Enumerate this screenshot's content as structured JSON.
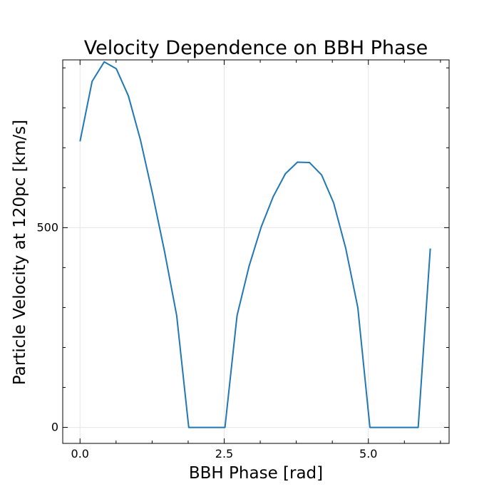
{
  "chart_data": {
    "type": "line",
    "title": "Velocity Dependence on BBH Phase",
    "xlabel": "BBH Phase [rad]",
    "ylabel": "Particle Velocity at 120pc [km/s]",
    "xlim": [
      -0.3,
      6.4
    ],
    "ylim": [
      -40,
      920
    ],
    "x_ticks": [
      0.0,
      2.5,
      5.0
    ],
    "x_tick_labels": [
      "0.0",
      "2.5",
      "5.0"
    ],
    "x_minor_ticks": [
      0.625,
      1.25,
      1.875,
      3.125,
      3.75,
      4.375,
      5.625,
      6.25
    ],
    "y_ticks": [
      0,
      500
    ],
    "y_tick_labels": [
      "0",
      "500"
    ],
    "y_minor_ticks": [
      100,
      200,
      300,
      400,
      600,
      700,
      800,
      900
    ],
    "grid": true,
    "ticks_direction": "in",
    "ticks_on": [
      "bottom",
      "top",
      "left",
      "right"
    ],
    "series": [
      {
        "color": "#1f77b4",
        "x": [
          0.0,
          0.209,
          0.419,
          0.628,
          0.838,
          1.047,
          1.257,
          1.466,
          1.676,
          1.885,
          2.094,
          2.304,
          2.513,
          2.723,
          2.932,
          3.142,
          3.351,
          3.561,
          3.77,
          3.98,
          4.189,
          4.398,
          4.608,
          4.817,
          5.027,
          5.236,
          5.445,
          5.655,
          5.864,
          6.074
        ],
        "y": [
          716,
          866,
          915,
          898,
          830,
          720,
          585,
          440,
          280,
          0,
          0,
          0,
          0,
          280,
          404,
          502,
          578,
          635,
          664,
          663,
          632,
          562,
          448,
          300,
          0,
          0,
          0,
          0,
          0,
          448
        ]
      }
    ]
  }
}
